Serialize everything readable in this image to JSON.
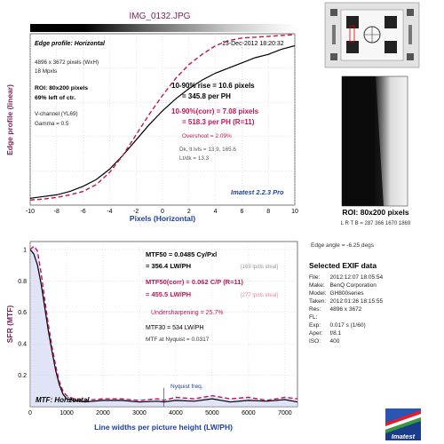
{
  "page": {
    "title": "IMG_0132.JPG",
    "watermark": "Imatest 2.2.3 Pro",
    "logo_text": "Imatest"
  },
  "edge_panel": {
    "header": "Edge profile: Horizontal",
    "date": "13-Dec-2012 18:20:32",
    "info": [
      "4896 x 3672 pixels (WxH)",
      "18 Mpxls"
    ],
    "roi_text": [
      "ROI: 80x200 pixels",
      "69% left of ctr."
    ],
    "channel_text": [
      "V-channel  (YL69)",
      "Gamma = 0.5"
    ],
    "rise1": "10-90% rise = 10.6 pixels",
    "rise2": "= 345.8 per PH",
    "corr1": "10-90%(corr) = 7.08 pixels",
    "corr2": "= 518.3 per PH  (R=11)",
    "overshoot": "Overshoot = 2.09%",
    "dk": "Dk, lt lvls = 13.9, 165.6",
    "ltdk": "Lt/dk = 13.3"
  },
  "mtf_panel": {
    "mtf50_1": "MTF50 = 0.0485 Cy/Pxl",
    "mtf50_2": "= 356.4 LW/PH",
    "mtf50_ideal": "[169 lp/ds ideal]",
    "corr_1": "MTF50(corr) = 0.062 C/P  (R=11)",
    "corr_2": "= 455.5 LW/PH",
    "corr_ideal": "[277 lp/ds ideal]",
    "undersharp": "Undersharpening = 25.7%",
    "mtf30": "MTF30 = 534 LW/PH",
    "nyq": "MTF at Nyquist = 0.0317",
    "nyq_label": "Nyquist freq.",
    "inside_label": "MTF: Horizontal"
  },
  "roi": {
    "label": "ROI: 80x200 pixels",
    "coords": "L R  T B = 287 366  1670 1869",
    "edge_angle": "Edge angle = -6.25 degs"
  },
  "exif": {
    "heading": "Selected EXIF data",
    "rows": [
      {
        "k": "File:",
        "v": "2012:12:07 18:05:54"
      },
      {
        "k": "Make:",
        "v": "BenQ Corporation"
      },
      {
        "k": "Model:",
        "v": "GH800series"
      },
      {
        "k": "Taken:",
        "v": "2012:01:26 18:15:55"
      },
      {
        "k": "Res:",
        "v": "4896 x 3672"
      },
      {
        "k": "FL:",
        "v": ""
      },
      {
        "k": "Exp:",
        "v": "0.017 s (1/60)"
      },
      {
        "k": "Aper:",
        "v": "f/8.1"
      },
      {
        "k": "ISO:",
        "v": "400"
      }
    ]
  },
  "chart_data": [
    {
      "type": "line",
      "title": "",
      "xlabel": "Pixels (Horizontal)",
      "ylabel": "Edge profile (linear)",
      "xlim": [
        -10,
        10
      ],
      "ylim": [
        0,
        1
      ],
      "grid": true,
      "xticks": [
        -10,
        -8,
        -6,
        -4,
        -2,
        0,
        2,
        4,
        6,
        8,
        10
      ],
      "series": [
        {
          "name": "Edge profile",
          "color": "#000000",
          "x": [
            -10,
            -9,
            -8,
            -7,
            -6,
            -5,
            -4,
            -3,
            -2,
            -1,
            0,
            1,
            2,
            3,
            4,
            5,
            6,
            7,
            8,
            9,
            10
          ],
          "y": [
            0.04,
            0.05,
            0.06,
            0.08,
            0.11,
            0.15,
            0.21,
            0.29,
            0.38,
            0.47,
            0.55,
            0.62,
            0.68,
            0.73,
            0.77,
            0.8,
            0.83,
            0.86,
            0.88,
            0.91,
            0.93
          ]
        },
        {
          "name": "Edge profile (corr)",
          "color": "#c0145a",
          "dashed": true,
          "x": [
            -10,
            -9,
            -8,
            -7,
            -6,
            -5,
            -4,
            -3,
            -2,
            -1,
            0,
            1,
            2,
            3,
            4,
            5,
            6,
            7,
            8,
            9,
            10
          ],
          "y": [
            0.03,
            0.035,
            0.045,
            0.06,
            0.08,
            0.12,
            0.19,
            0.29,
            0.41,
            0.53,
            0.64,
            0.74,
            0.82,
            0.88,
            0.93,
            0.96,
            0.975,
            0.98,
            0.985,
            0.99,
            0.995
          ]
        }
      ]
    },
    {
      "type": "line",
      "title": "",
      "xlabel": "Line widths per picture height (LW/PH)",
      "ylabel": "SFR (MTF)",
      "xlim": [
        0,
        7344
      ],
      "ylim": [
        0,
        1.05
      ],
      "grid": true,
      "xticks": [
        0,
        1000,
        2000,
        3000,
        4000,
        5000,
        6000,
        7000
      ],
      "yticks": [
        0.2,
        0.4,
        0.6,
        0.8,
        1
      ],
      "nyquist_x": 3672,
      "series": [
        {
          "name": "MTF",
          "color": "#000000",
          "x": [
            0,
            100,
            200,
            300,
            400,
            500,
            600,
            700,
            800,
            900,
            1000,
            1200,
            1500,
            2000,
            2500,
            3000,
            3500,
            3672,
            4000,
            4500,
            5000,
            5500,
            6000,
            6500,
            7000,
            7344
          ],
          "y": [
            1.0,
            0.97,
            0.9,
            0.78,
            0.63,
            0.48,
            0.35,
            0.23,
            0.14,
            0.08,
            0.05,
            0.04,
            0.03,
            0.04,
            0.04,
            0.03,
            0.035,
            0.03,
            0.04,
            0.035,
            0.05,
            0.03,
            0.04,
            0.035,
            0.045,
            0.03
          ]
        },
        {
          "name": "MTF (corr)",
          "color": "#c0145a",
          "dashed": true,
          "x": [
            0,
            100,
            200,
            300,
            400,
            500,
            600,
            700,
            800,
            900,
            1000,
            1200,
            1500,
            2000,
            2500,
            3000,
            3500,
            3672,
            4000,
            4500,
            5000,
            5500,
            6000,
            6500,
            7000,
            7344
          ],
          "y": [
            1.0,
            1.02,
            0.99,
            0.85,
            0.68,
            0.52,
            0.38,
            0.26,
            0.16,
            0.1,
            0.07,
            0.05,
            0.04,
            0.05,
            0.05,
            0.04,
            0.05,
            0.04,
            0.06,
            0.05,
            0.07,
            0.05,
            0.06,
            0.04,
            0.06,
            0.05
          ]
        }
      ]
    }
  ]
}
